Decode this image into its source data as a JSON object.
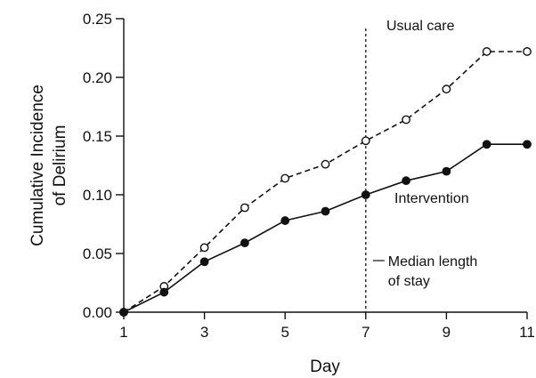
{
  "chart_data": {
    "type": "line",
    "xlabel": "Day",
    "ylabel": [
      "Cumulative Incidence",
      "of Delirium"
    ],
    "xlim": [
      1,
      11
    ],
    "ylim": [
      0,
      0.25
    ],
    "xticks": [
      1,
      3,
      5,
      7,
      9,
      11
    ],
    "yticks": [
      "0.00",
      "0.05",
      "0.10",
      "0.15",
      "0.20",
      "0.25"
    ],
    "grid": false,
    "x": [
      1,
      2,
      3,
      4,
      5,
      6,
      7,
      8,
      9,
      10,
      11
    ],
    "series": [
      {
        "name": "Usual care",
        "values": [
          0.0,
          0.022,
          0.055,
          0.089,
          0.114,
          0.126,
          0.146,
          0.164,
          0.19,
          0.222,
          0.222
        ],
        "line_style": "dashed",
        "marker": "open-circle",
        "color": "#111111"
      },
      {
        "name": "Intervention",
        "values": [
          0.0,
          0.017,
          0.043,
          0.059,
          0.078,
          0.086,
          0.1,
          0.112,
          0.12,
          0.143,
          0.143
        ],
        "line_style": "solid",
        "marker": "filled-circle",
        "color": "#111111"
      }
    ],
    "reference_line": {
      "x": 7,
      "style": "dotted",
      "label": [
        "Median length",
        "of stay"
      ]
    }
  }
}
